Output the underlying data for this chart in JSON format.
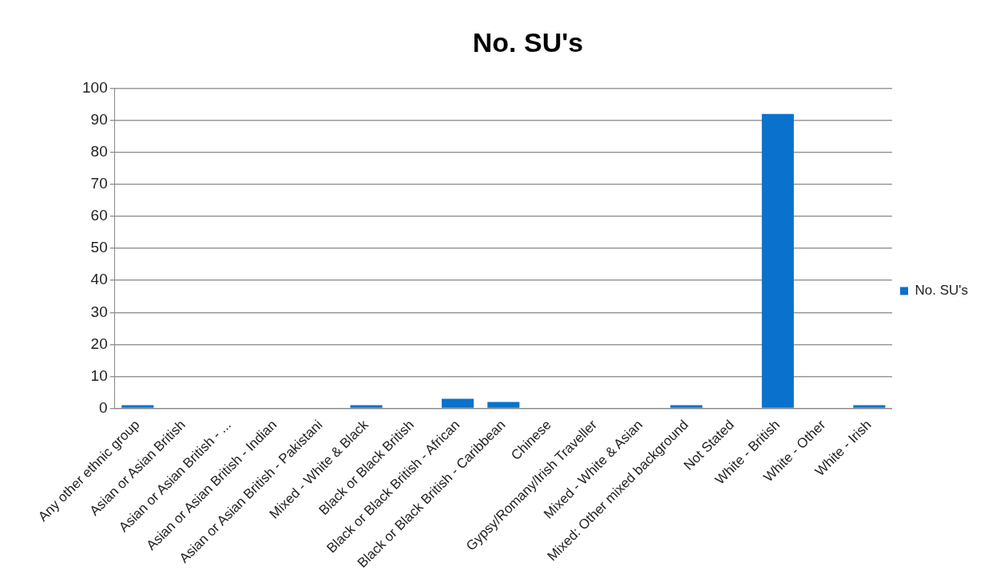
{
  "chart_data": {
    "type": "bar",
    "title": "No. SU's",
    "categories": [
      "Any other ethnic group",
      "Asian or Asian British",
      "Asian or Asian British - ...",
      "Asian or Asian British - Indian",
      "Asian or Asian British - Pakistani",
      "Mixed - White & Black",
      "Black or Black British",
      "Black or Black British - African",
      "Black or Black British - Caribbean",
      "Chinese",
      "Gypsy/Romany/Irish Traveller",
      "Mixed - White & Asian",
      "Mixed: Other mixed background",
      "Not Stated",
      "White - British",
      "White - Other",
      "White - Irish"
    ],
    "series": [
      {
        "name": "No. SU's",
        "color": "#0a72cc",
        "values": [
          1,
          0,
          0,
          0,
          0,
          1,
          0,
          3,
          2,
          0,
          0,
          0,
          1,
          0,
          92,
          0,
          1
        ]
      }
    ],
    "ylim": [
      0,
      100
    ],
    "yticks": [
      0,
      10,
      20,
      30,
      40,
      50,
      60,
      70,
      80,
      90,
      100
    ],
    "grid": "y",
    "legend": "right"
  }
}
